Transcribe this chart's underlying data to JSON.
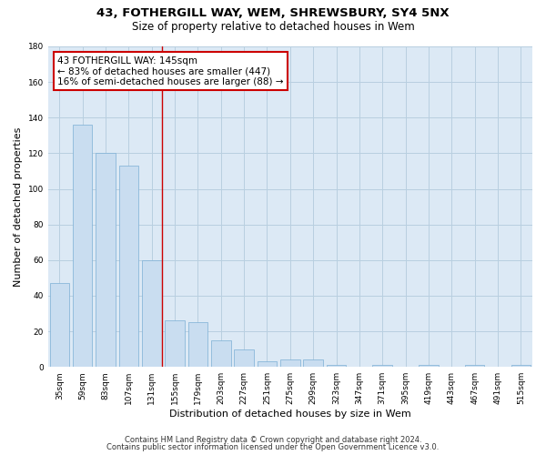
{
  "title_line1": "43, FOTHERGILL WAY, WEM, SHREWSBURY, SY4 5NX",
  "title_line2": "Size of property relative to detached houses in Wem",
  "xlabel": "Distribution of detached houses by size in Wem",
  "ylabel": "Number of detached properties",
  "bar_color": "#c9ddf0",
  "bar_edge_color": "#7bafd4",
  "grid_color": "#b8cfe0",
  "background_color": "#dce9f5",
  "annotation_box_color": "#cc0000",
  "vline_color": "#cc0000",
  "categories": [
    "35sqm",
    "59sqm",
    "83sqm",
    "107sqm",
    "131sqm",
    "155sqm",
    "179sqm",
    "203sqm",
    "227sqm",
    "251sqm",
    "275sqm",
    "299sqm",
    "323sqm",
    "347sqm",
    "371sqm",
    "395sqm",
    "419sqm",
    "443sqm",
    "467sqm",
    "491sqm",
    "515sqm"
  ],
  "values": [
    47,
    136,
    120,
    113,
    60,
    26,
    25,
    15,
    10,
    3,
    4,
    4,
    1,
    0,
    1,
    0,
    1,
    0,
    1,
    0,
    1
  ],
  "ylim": [
    0,
    180
  ],
  "yticks": [
    0,
    20,
    40,
    60,
    80,
    100,
    120,
    140,
    160,
    180
  ],
  "vline_x": 4.45,
  "annotation_title": "43 FOTHERGILL WAY: 145sqm",
  "annotation_line1": "← 83% of detached houses are smaller (447)",
  "annotation_line2": "16% of semi-detached houses are larger (88) →",
  "footer_line1": "Contains HM Land Registry data © Crown copyright and database right 2024.",
  "footer_line2": "Contains public sector information licensed under the Open Government Licence v3.0.",
  "title_fontsize": 9.5,
  "subtitle_fontsize": 8.5,
  "axis_label_fontsize": 8,
  "tick_fontsize": 6.5,
  "annotation_fontsize": 7.5,
  "footer_fontsize": 6
}
